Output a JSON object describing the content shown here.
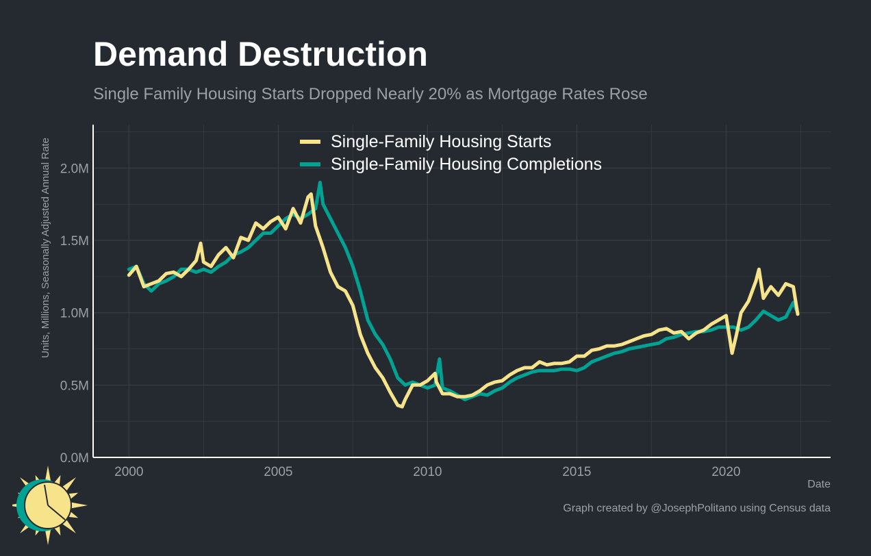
{
  "header": {
    "title": "Demand Destruction",
    "subtitle": "Single Family Housing Starts Dropped Nearly 20% as Mortgage Rates Rose"
  },
  "footer": {
    "caption": "Graph created by @JosephPolitano using Census data"
  },
  "colors": {
    "background": "#252a31",
    "starts": "#f7e38a",
    "completions": "#00a393",
    "grid": "#3b4148",
    "text": "#9aa0a6",
    "logo_sun": "#f7e38a",
    "logo_ring": "#00a393"
  },
  "icons": {
    "logo": "sun-icon"
  },
  "chart_data": {
    "type": "line",
    "title": "Demand Destruction",
    "subtitle": "Single Family Housing Starts Dropped Nearly 20% as Mortgage Rates Rose",
    "xlabel": "Date",
    "ylabel": "Units, Millions, Seasonally Adjusted Annual Rate",
    "xlim": [
      1998.8,
      2023.5
    ],
    "ylim": [
      0,
      2.3
    ],
    "x_ticks": [
      2000,
      2005,
      2010,
      2015,
      2020
    ],
    "x_tick_labels": [
      "2000",
      "2005",
      "2010",
      "2015",
      "2020"
    ],
    "y_ticks": [
      0,
      0.5,
      1.0,
      1.5,
      2.0
    ],
    "y_tick_labels": [
      "0.0M",
      "0.5M",
      "1.0M",
      "1.5M",
      "2.0M"
    ],
    "grid": true,
    "legend_position": "top-center",
    "series": [
      {
        "name": "Single-Family Housing Starts",
        "color": "#f7e38a",
        "x": [
          2000.0,
          2000.25,
          2000.5,
          2000.75,
          2001.0,
          2001.25,
          2001.5,
          2001.75,
          2002.0,
          2002.25,
          2002.4,
          2002.5,
          2002.75,
          2003.0,
          2003.25,
          2003.5,
          2003.75,
          2004.0,
          2004.25,
          2004.5,
          2004.75,
          2005.0,
          2005.25,
          2005.5,
          2005.75,
          2006.0,
          2006.1,
          2006.25,
          2006.5,
          2006.75,
          2007.0,
          2007.25,
          2007.5,
          2007.75,
          2008.0,
          2008.25,
          2008.5,
          2008.75,
          2009.0,
          2009.15,
          2009.25,
          2009.5,
          2009.75,
          2010.0,
          2010.25,
          2010.3,
          2010.5,
          2010.75,
          2011.0,
          2011.25,
          2011.5,
          2011.75,
          2012.0,
          2012.25,
          2012.5,
          2012.75,
          2013.0,
          2013.25,
          2013.5,
          2013.75,
          2014.0,
          2014.25,
          2014.5,
          2014.75,
          2015.0,
          2015.25,
          2015.5,
          2015.75,
          2016.0,
          2016.25,
          2016.5,
          2016.75,
          2017.0,
          2017.25,
          2017.5,
          2017.75,
          2018.0,
          2018.25,
          2018.5,
          2018.75,
          2019.0,
          2019.25,
          2019.5,
          2019.75,
          2020.0,
          2020.2,
          2020.35,
          2020.5,
          2020.75,
          2021.0,
          2021.1,
          2021.25,
          2021.5,
          2021.75,
          2022.0,
          2022.25,
          2022.4
        ],
        "y": [
          1.26,
          1.32,
          1.18,
          1.2,
          1.22,
          1.27,
          1.28,
          1.25,
          1.3,
          1.36,
          1.48,
          1.35,
          1.32,
          1.4,
          1.45,
          1.38,
          1.52,
          1.5,
          1.62,
          1.58,
          1.63,
          1.66,
          1.58,
          1.72,
          1.62,
          1.8,
          1.82,
          1.6,
          1.45,
          1.28,
          1.18,
          1.15,
          1.05,
          0.85,
          0.72,
          0.62,
          0.55,
          0.45,
          0.36,
          0.35,
          0.4,
          0.5,
          0.5,
          0.53,
          0.58,
          0.52,
          0.44,
          0.44,
          0.42,
          0.42,
          0.43,
          0.46,
          0.5,
          0.52,
          0.53,
          0.57,
          0.6,
          0.62,
          0.62,
          0.66,
          0.64,
          0.65,
          0.65,
          0.66,
          0.7,
          0.7,
          0.74,
          0.75,
          0.77,
          0.77,
          0.78,
          0.8,
          0.82,
          0.84,
          0.85,
          0.88,
          0.89,
          0.86,
          0.87,
          0.82,
          0.86,
          0.88,
          0.92,
          0.95,
          0.98,
          0.72,
          0.85,
          1.0,
          1.08,
          1.22,
          1.3,
          1.1,
          1.18,
          1.12,
          1.2,
          1.18,
          0.99
        ]
      },
      {
        "name": "Single-Family Housing Completions",
        "color": "#00a393",
        "x": [
          2000.0,
          2000.25,
          2000.5,
          2000.75,
          2001.0,
          2001.25,
          2001.5,
          2001.75,
          2002.0,
          2002.25,
          2002.5,
          2002.75,
          2003.0,
          2003.25,
          2003.5,
          2003.75,
          2004.0,
          2004.25,
          2004.5,
          2004.75,
          2005.0,
          2005.25,
          2005.5,
          2005.75,
          2006.0,
          2006.25,
          2006.4,
          2006.5,
          2006.75,
          2007.0,
          2007.25,
          2007.5,
          2007.75,
          2008.0,
          2008.25,
          2008.5,
          2008.75,
          2009.0,
          2009.25,
          2009.5,
          2009.75,
          2010.0,
          2010.25,
          2010.4,
          2010.5,
          2010.75,
          2011.0,
          2011.25,
          2011.5,
          2011.75,
          2012.0,
          2012.25,
          2012.5,
          2012.75,
          2013.0,
          2013.25,
          2013.5,
          2013.75,
          2014.0,
          2014.25,
          2014.5,
          2014.75,
          2015.0,
          2015.25,
          2015.5,
          2015.75,
          2016.0,
          2016.25,
          2016.5,
          2016.75,
          2017.0,
          2017.25,
          2017.5,
          2017.75,
          2018.0,
          2018.25,
          2018.5,
          2018.75,
          2019.0,
          2019.25,
          2019.5,
          2019.75,
          2020.0,
          2020.25,
          2020.5,
          2020.75,
          2021.0,
          2021.25,
          2021.5,
          2021.75,
          2022.0,
          2022.25,
          2022.4
        ],
        "y": [
          1.3,
          1.32,
          1.2,
          1.15,
          1.2,
          1.22,
          1.25,
          1.3,
          1.3,
          1.28,
          1.3,
          1.28,
          1.32,
          1.35,
          1.4,
          1.42,
          1.45,
          1.5,
          1.55,
          1.55,
          1.6,
          1.65,
          1.68,
          1.65,
          1.68,
          1.72,
          1.9,
          1.75,
          1.65,
          1.55,
          1.45,
          1.32,
          1.15,
          0.95,
          0.85,
          0.78,
          0.68,
          0.55,
          0.5,
          0.52,
          0.5,
          0.48,
          0.5,
          0.68,
          0.48,
          0.46,
          0.43,
          0.4,
          0.42,
          0.44,
          0.43,
          0.46,
          0.48,
          0.52,
          0.55,
          0.57,
          0.59,
          0.6,
          0.6,
          0.6,
          0.61,
          0.61,
          0.6,
          0.62,
          0.66,
          0.68,
          0.7,
          0.72,
          0.73,
          0.75,
          0.76,
          0.77,
          0.78,
          0.79,
          0.82,
          0.83,
          0.85,
          0.86,
          0.87,
          0.87,
          0.88,
          0.9,
          0.9,
          0.9,
          0.88,
          0.9,
          0.95,
          1.01,
          0.98,
          0.95,
          0.97,
          1.07,
          1.0
        ]
      }
    ]
  }
}
